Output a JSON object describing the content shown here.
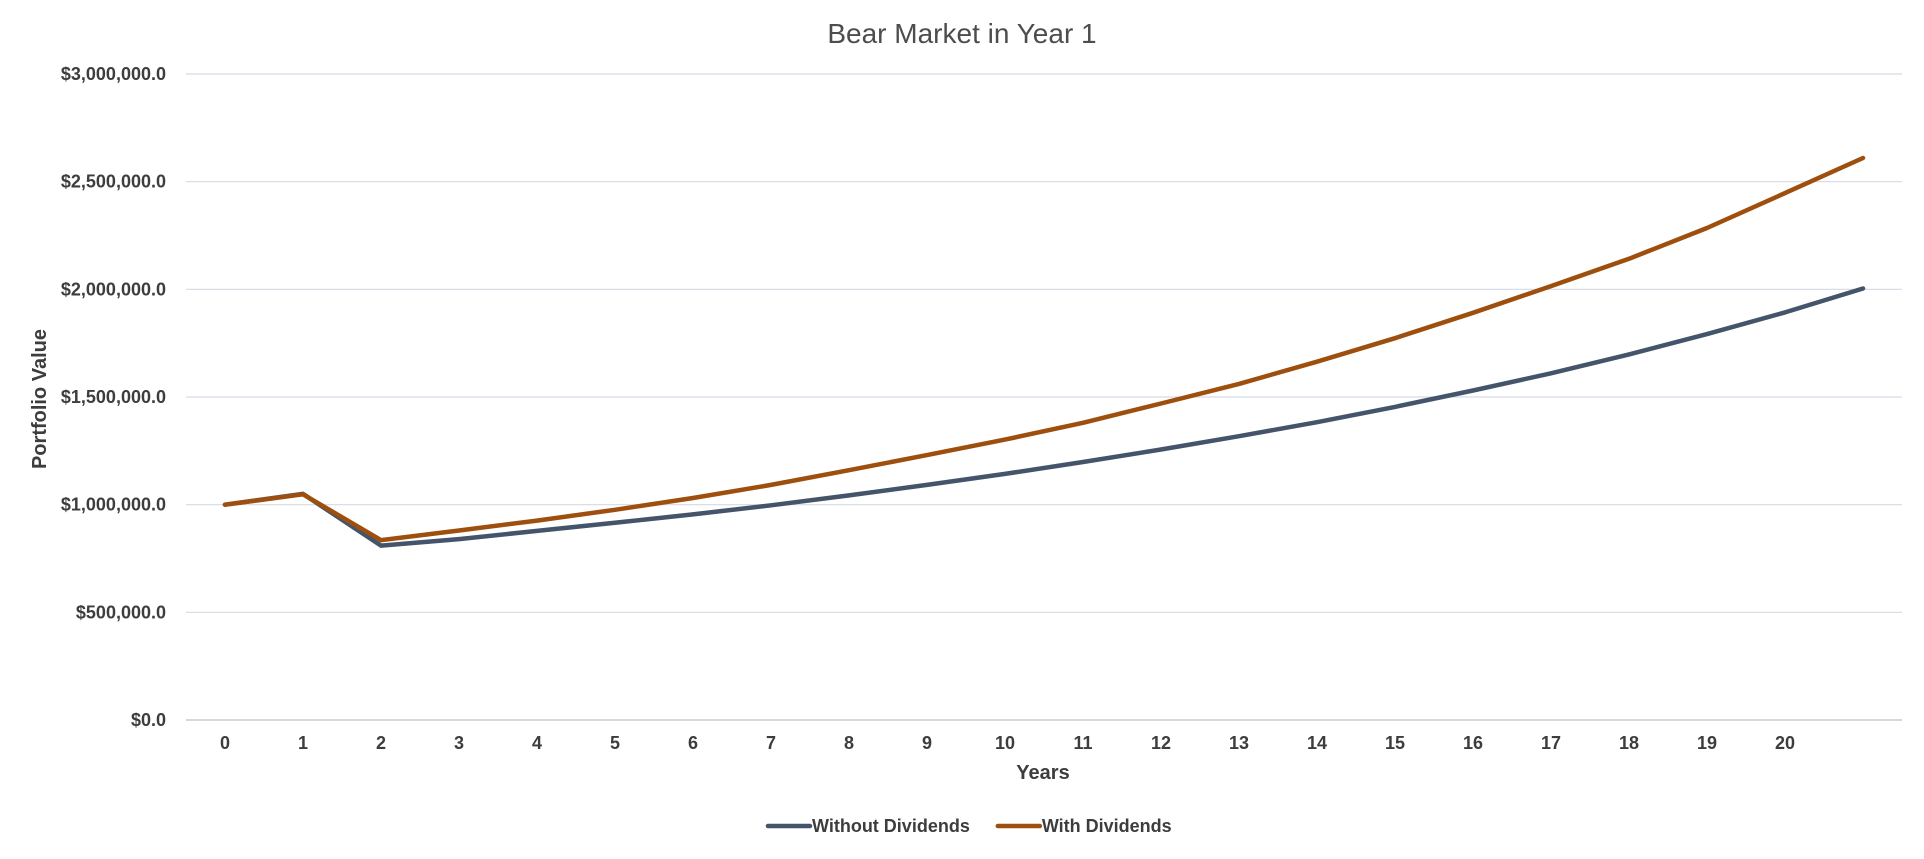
{
  "chart_data": {
    "type": "line",
    "title": "Bear Market in Year 1",
    "xlabel": "Years",
    "ylabel": "Portfolio Value",
    "categories": [
      "0",
      "1",
      "2",
      "3",
      "4",
      "5",
      "6",
      "7",
      "8",
      "9",
      "10",
      "11",
      "12",
      "13",
      "14",
      "15",
      "16",
      "17",
      "18",
      "19",
      "20",
      ""
    ],
    "ylim": [
      0,
      3000000
    ],
    "yticks": [
      0,
      500000,
      1000000,
      1500000,
      2000000,
      2500000,
      3000000
    ],
    "ytick_labels": [
      "$0.0",
      "$500,000.0",
      "$1,000,000.0",
      "$1,500,000.0",
      "$2,000,000.0",
      "$2,500,000.0",
      "$3,000,000.0"
    ],
    "grid": true,
    "legend_position": "bottom",
    "series": [
      {
        "name": "Without Dividends",
        "color": "#44546a",
        "values": [
          1000000,
          1050000,
          810000,
          840000,
          878000,
          916000,
          955000,
          997000,
          1043000,
          1092000,
          1143000,
          1198000,
          1256000,
          1318000,
          1383000,
          1454000,
          1530000,
          1610000,
          1698000,
          1792000,
          1893000,
          2004000
        ]
      },
      {
        "name": "With Dividends",
        "color": "#9e4f0d",
        "values": [
          1000000,
          1048000,
          835000,
          880000,
          926000,
          976000,
          1031000,
          1092000,
          1160000,
          1230000,
          1302000,
          1380000,
          1470000,
          1561000,
          1664000,
          1773000,
          1891000,
          2015000,
          2142000,
          2285000,
          2447000,
          2610000
        ]
      }
    ]
  }
}
